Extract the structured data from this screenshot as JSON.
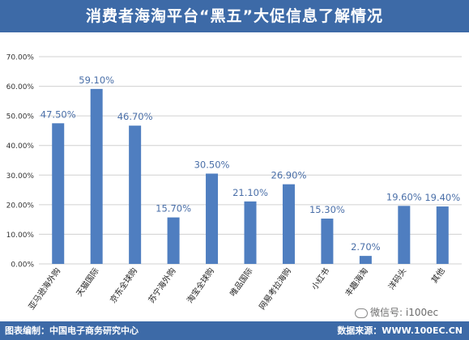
{
  "header": {
    "title": "消费者海淘平台“黑五”大促信息了解情况"
  },
  "footer": {
    "left": "图表编制：中国电子商务研究中心",
    "right": "数据来源：WWW.100EC.CN"
  },
  "watermark": {
    "text": "微信号: i100ec",
    "icon": "wechat-icon"
  },
  "colors": {
    "header": "#3d6aa7",
    "bar": "#4f7ec0",
    "label": "#4a6fa8",
    "grid": "#d0d0d0"
  },
  "chart_data": {
    "type": "bar",
    "title": "消费者海淘平台“黑五”大促信息了解情况",
    "categories": [
      "亚马逊海外购",
      "天猫国际",
      "京东全球购",
      "苏宁海外购",
      "淘宝全球购",
      "唯品国际",
      "网易考拉海购",
      "小红书",
      "丰趣海淘",
      "洋码头",
      "其他"
    ],
    "values": [
      47.5,
      59.1,
      46.7,
      15.7,
      30.5,
      21.1,
      26.9,
      15.3,
      2.7,
      19.6,
      19.4
    ],
    "value_labels": [
      "47.50%",
      "59.10%",
      "46.70%",
      "15.70%",
      "30.50%",
      "21.10%",
      "26.90%",
      "15.30%",
      "2.70%",
      "19.60%",
      "19.40%"
    ],
    "y_ticks": [
      "0.00%",
      "10.00%",
      "20.00%",
      "30.00%",
      "40.00%",
      "50.00%",
      "60.00%",
      "70.00%"
    ],
    "ylim": [
      0,
      70
    ],
    "grid": true,
    "legend": "none"
  }
}
